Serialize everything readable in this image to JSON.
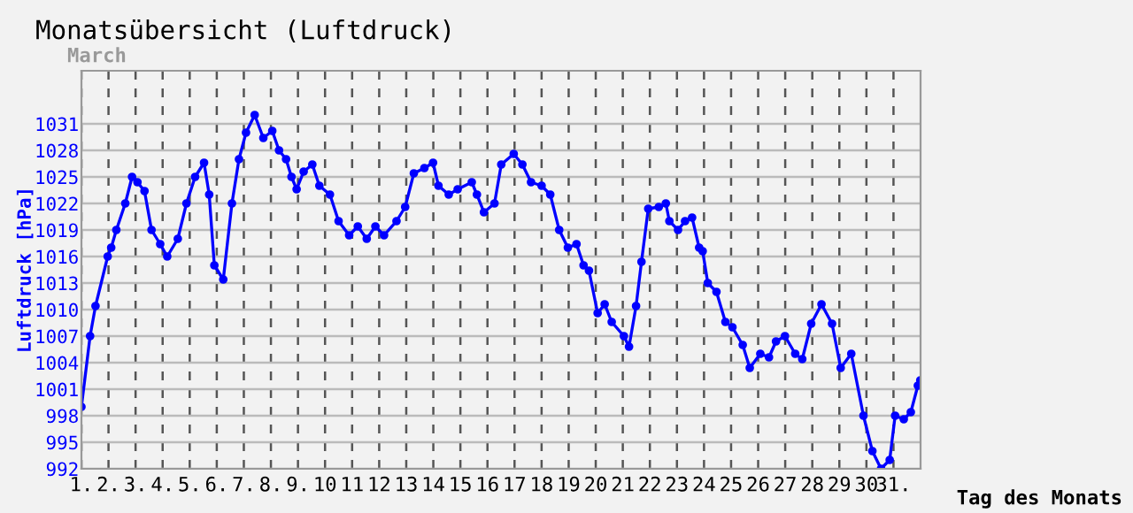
{
  "chart_data": {
    "type": "line",
    "title": "Monatsübersicht (Luftdruck)",
    "subtitle": "March",
    "xlabel": "Tag des Monats",
    "ylabel": "Luftdruck [hPa]",
    "series": [
      {
        "color": "#0000ff",
        "x": [
          1.0,
          1.32,
          1.52,
          1.97,
          2.1,
          2.29,
          2.62,
          2.87,
          3.07,
          3.33,
          3.59,
          3.91,
          4.17,
          4.56,
          4.88,
          5.2,
          5.53,
          5.72,
          5.91,
          6.24,
          6.56,
          6.82,
          7.08,
          7.4,
          7.72,
          8.05,
          8.3,
          8.56,
          8.76,
          8.95,
          9.21,
          9.53,
          9.79,
          10.18,
          10.5,
          10.89,
          11.21,
          11.54,
          11.86,
          12.18,
          12.64,
          12.96,
          13.28,
          13.67,
          13.99,
          14.19,
          14.57,
          14.9,
          15.42,
          15.61,
          15.87,
          16.26,
          16.51,
          16.97,
          17.29,
          17.61,
          18.0,
          18.32,
          18.65,
          18.97,
          19.29,
          19.55,
          19.75,
          20.07,
          20.33,
          20.59,
          21.04,
          21.23,
          21.49,
          21.69,
          21.94,
          22.33,
          22.59,
          22.72,
          23.04,
          23.3,
          23.56,
          23.82,
          23.95,
          24.14,
          24.46,
          24.79,
          25.05,
          25.43,
          25.69,
          26.08,
          26.4,
          26.66,
          26.99,
          27.37,
          27.63,
          27.96,
          28.34,
          28.73,
          29.05,
          29.44,
          29.89,
          30.22,
          30.54,
          30.86,
          31.06,
          31.38,
          31.64,
          31.9,
          31.99
        ],
        "values": [
          999,
          1007,
          1010.4,
          1016,
          1017,
          1019,
          1022,
          1025,
          1024.4,
          1023.4,
          1019,
          1017.4,
          1016,
          1018,
          1022,
          1025,
          1026.6,
          1023,
          1015,
          1013.4,
          1022,
          1027,
          1030,
          1032,
          1029.4,
          1030.2,
          1028,
          1027,
          1025,
          1023.6,
          1025.6,
          1026.4,
          1024,
          1023,
          1020,
          1018.4,
          1019.4,
          1018,
          1019.4,
          1018.4,
          1020,
          1021.6,
          1025.4,
          1026,
          1026.6,
          1024,
          1023,
          1023.6,
          1024.4,
          1023,
          1021,
          1022,
          1026.4,
          1027.6,
          1026.4,
          1024.4,
          1024,
          1023,
          1019,
          1017,
          1017.4,
          1015,
          1014.4,
          1009.6,
          1010.6,
          1008.6,
          1007,
          1005.8,
          1010.4,
          1015.4,
          1021.4,
          1021.6,
          1022,
          1020,
          1019,
          1020,
          1020.4,
          1017,
          1016.6,
          1013,
          1012,
          1008.6,
          1008,
          1006,
          1003.4,
          1005,
          1004.6,
          1006.4,
          1007,
          1005,
          1004.4,
          1008.4,
          1010.6,
          1008.4,
          1003.4,
          1005,
          998,
          994,
          992,
          993,
          998,
          997.6,
          998.4,
          1001.4,
          1002
        ]
      }
    ],
    "xlim": [
      1,
      32
    ],
    "xticks": [
      {
        "value": 1,
        "label": "1."
      },
      {
        "value": 2,
        "label": "2."
      },
      {
        "value": 3,
        "label": "3."
      },
      {
        "value": 4,
        "label": "4."
      },
      {
        "value": 5,
        "label": "5."
      },
      {
        "value": 6,
        "label": "6."
      },
      {
        "value": 7,
        "label": "7."
      },
      {
        "value": 8,
        "label": "8."
      },
      {
        "value": 9,
        "label": "9."
      },
      {
        "value": 10,
        "label": "10"
      },
      {
        "value": 11,
        "label": "11"
      },
      {
        "value": 12,
        "label": "12"
      },
      {
        "value": 13,
        "label": "13"
      },
      {
        "value": 14,
        "label": "14"
      },
      {
        "value": 15,
        "label": "15"
      },
      {
        "value": 16,
        "label": "16"
      },
      {
        "value": 17,
        "label": "17"
      },
      {
        "value": 18,
        "label": "18"
      },
      {
        "value": 19,
        "label": "19"
      },
      {
        "value": 20,
        "label": "20"
      },
      {
        "value": 21,
        "label": "21"
      },
      {
        "value": 22,
        "label": "22"
      },
      {
        "value": 23,
        "label": "23"
      },
      {
        "value": 24,
        "label": "24"
      },
      {
        "value": 25,
        "label": "25"
      },
      {
        "value": 26,
        "label": "26"
      },
      {
        "value": 27,
        "label": "27"
      },
      {
        "value": 28,
        "label": "28"
      },
      {
        "value": 29,
        "label": "29"
      },
      {
        "value": 30,
        "label": "30"
      },
      {
        "value": 31,
        "label": "31."
      }
    ],
    "ylim": [
      992,
      1037
    ],
    "yticks": [
      992,
      995,
      998,
      1001,
      1004,
      1007,
      1010,
      1013,
      1016,
      1019,
      1022,
      1025,
      1028,
      1031
    ],
    "grid": true,
    "marker": "circle",
    "line_style": "solid"
  }
}
